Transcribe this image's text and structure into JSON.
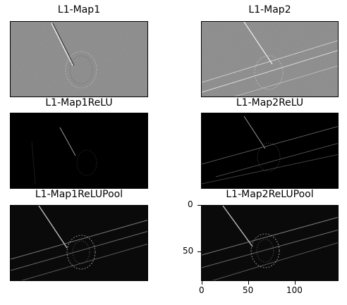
{
  "panels": [
    {
      "title": "L1-Map1",
      "style": "gray-edge",
      "base_color": "#8a8a8a"
    },
    {
      "title": "L1-Map2",
      "style": "gray-edge-lines",
      "base_color": "#8a8a8a"
    },
    {
      "title": "L1-Map1ReLU",
      "style": "dark-sparse",
      "base_color": "#000000"
    },
    {
      "title": "L1-Map2ReLU",
      "style": "dark-lines",
      "base_color": "#000000"
    },
    {
      "title": "L1-Map1ReLUPool",
      "style": "dark-lines-bright",
      "base_color": "#0a0a0a"
    },
    {
      "title": "L1-Map2ReLUPool",
      "style": "dark-lines-bright",
      "base_color": "#0a0a0a"
    }
  ],
  "axes": {
    "y_ticks": [
      "0",
      "50"
    ],
    "x_ticks": [
      "0",
      "50",
      "100"
    ]
  }
}
